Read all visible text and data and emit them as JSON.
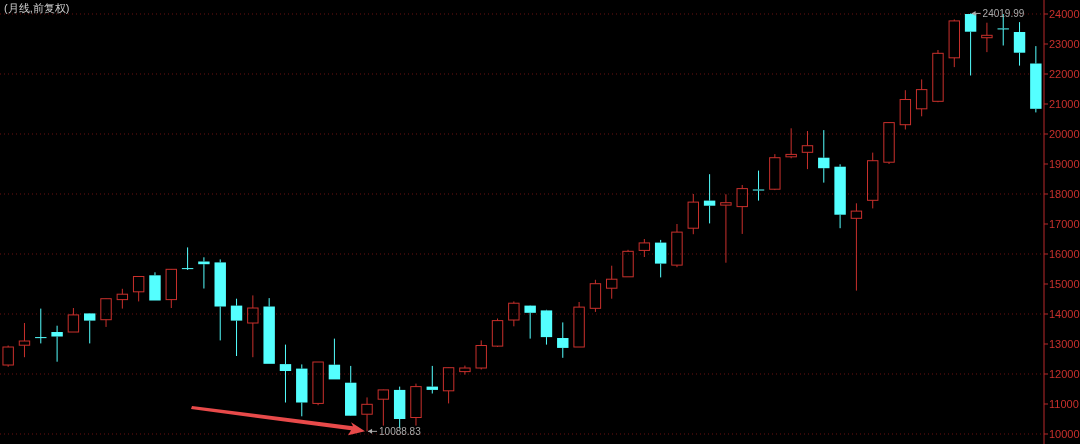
{
  "chart_data": {
    "type": "candlestick",
    "title": "(月线,前复权)",
    "categories": [
      null,
      null,
      null,
      null,
      null,
      null,
      null,
      null,
      null,
      null,
      null,
      null,
      null,
      null,
      null,
      null,
      null,
      null,
      null,
      null,
      null,
      null,
      null,
      null,
      null,
      null,
      null,
      null,
      null,
      null,
      null,
      null,
      null,
      null,
      null,
      null,
      null,
      null,
      null,
      null,
      null,
      null,
      null,
      null,
      null,
      null,
      null,
      null,
      null,
      null,
      null,
      null,
      null,
      null,
      null,
      null,
      null,
      null,
      null,
      null,
      null,
      null,
      null,
      null
    ],
    "ohlc": [
      [
        12300,
        12950,
        12240,
        12900
      ],
      [
        12960,
        13700,
        12560,
        13100
      ],
      [
        13230,
        14180,
        13020,
        13220
      ],
      [
        13400,
        13610,
        12410,
        13250
      ],
      [
        13400,
        14200,
        13400,
        13970
      ],
      [
        14020,
        14030,
        13020,
        13780
      ],
      [
        13810,
        14520,
        13570,
        14510
      ],
      [
        14480,
        14840,
        14180,
        14660
      ],
      [
        14740,
        15260,
        14420,
        15250
      ],
      [
        15290,
        15390,
        14450,
        14450
      ],
      [
        14480,
        15500,
        14200,
        15490
      ],
      [
        15530,
        16220,
        15470,
        15520
      ],
      [
        15750,
        15890,
        14850,
        15660
      ],
      [
        15720,
        15820,
        13120,
        14250
      ],
      [
        14280,
        14510,
        12600,
        13780
      ],
      [
        13700,
        14620,
        12560,
        14200
      ],
      [
        14250,
        14530,
        12340,
        12340
      ],
      [
        12330,
        12980,
        11050,
        12100
      ],
      [
        12180,
        12320,
        10590,
        11050
      ],
      [
        11020,
        12400,
        10960,
        12400
      ],
      [
        12310,
        13180,
        11820,
        11820
      ],
      [
        11710,
        12270,
        10600,
        10610
      ],
      [
        10660,
        11220,
        10088.83,
        10990
      ],
      [
        11160,
        11480,
        10280,
        11470
      ],
      [
        11470,
        11580,
        10190,
        10500
      ],
      [
        10550,
        11680,
        10280,
        11580
      ],
      [
        11580,
        12270,
        11350,
        11470
      ],
      [
        11440,
        12220,
        11020,
        12210
      ],
      [
        12080,
        12280,
        11980,
        12200
      ],
      [
        12200,
        13120,
        12150,
        12950
      ],
      [
        12930,
        13850,
        12900,
        13780
      ],
      [
        13800,
        14420,
        13590,
        14360
      ],
      [
        14280,
        14290,
        13180,
        14040
      ],
      [
        14120,
        14140,
        12980,
        13230
      ],
      [
        13200,
        13720,
        12540,
        12870
      ],
      [
        12900,
        14400,
        12900,
        14230
      ],
      [
        14190,
        15140,
        14070,
        15010
      ],
      [
        14860,
        15610,
        14510,
        15160
      ],
      [
        15240,
        16140,
        15240,
        16090
      ],
      [
        16120,
        16500,
        15900,
        16370
      ],
      [
        16380,
        16470,
        15220,
        15680
      ],
      [
        15630,
        17000,
        15560,
        16730
      ],
      [
        16860,
        18000,
        16660,
        17730
      ],
      [
        17780,
        18660,
        17020,
        17610
      ],
      [
        17630,
        17990,
        15710,
        17710
      ],
      [
        17580,
        18300,
        16670,
        18180
      ],
      [
        18150,
        18780,
        17780,
        18120
      ],
      [
        18160,
        19330,
        18130,
        19210
      ],
      [
        19240,
        20190,
        19190,
        19320
      ],
      [
        19390,
        20100,
        18830,
        19610
      ],
      [
        19210,
        20130,
        18380,
        18860
      ],
      [
        18910,
        18990,
        16860,
        17310
      ],
      [
        17190,
        17690,
        14780,
        17430
      ],
      [
        17790,
        19380,
        17520,
        19110
      ],
      [
        19060,
        20400,
        19000,
        20380
      ],
      [
        20310,
        21460,
        20150,
        21150
      ],
      [
        20840,
        21820,
        20590,
        21480
      ],
      [
        21090,
        22800,
        21060,
        22690
      ],
      [
        22540,
        23820,
        22230,
        23770
      ],
      [
        24000,
        24019.99,
        21950,
        23410
      ],
      [
        23210,
        23710,
        22730,
        23290
      ],
      [
        23520,
        24000,
        22950,
        23500
      ],
      [
        23400,
        23730,
        22280,
        22710
      ],
      [
        22350,
        22930,
        20720,
        20840
      ]
    ],
    "colors": [
      "#c9302c",
      "#c9302c",
      "#54ffff",
      "#54ffff",
      "#c9302c",
      "#54ffff",
      "#c9302c",
      "#c9302c",
      "#c9302c",
      "#54ffff",
      "#c9302c",
      "#54ffff",
      "#54ffff",
      "#54ffff",
      "#54ffff",
      "#c9302c",
      "#54ffff",
      "#54ffff",
      "#54ffff",
      "#c9302c",
      "#54ffff",
      "#54ffff",
      "#c9302c",
      "#c9302c",
      "#54ffff",
      "#c9302c",
      "#54ffff",
      "#c9302c",
      "#c9302c",
      "#c9302c",
      "#c9302c",
      "#c9302c",
      "#54ffff",
      "#54ffff",
      "#54ffff",
      "#c9302c",
      "#c9302c",
      "#c9302c",
      "#c9302c",
      "#c9302c",
      "#54ffff",
      "#c9302c",
      "#c9302c",
      "#54ffff",
      "#c9302c",
      "#c9302c",
      "#54ffff",
      "#c9302c",
      "#c9302c",
      "#c9302c",
      "#54ffff",
      "#54ffff",
      "#c9302c",
      "#c9302c",
      "#c9302c",
      "#c9302c",
      "#c9302c",
      "#c9302c",
      "#c9302c",
      "#54ffff",
      "#c9302c",
      "#54ffff",
      "#54ffff",
      "#54ffff"
    ],
    "ylim": [
      9667,
      24467
    ],
    "yticks": [
      10000,
      11000,
      12000,
      13000,
      14000,
      15000,
      16000,
      17000,
      18000,
      19000,
      20000,
      21000,
      22000,
      23000,
      24000
    ],
    "grid": "y",
    "annotations": [
      {
        "text": "24019.99",
        "y": 24019.99
      },
      "10088.83"
    ]
  }
}
